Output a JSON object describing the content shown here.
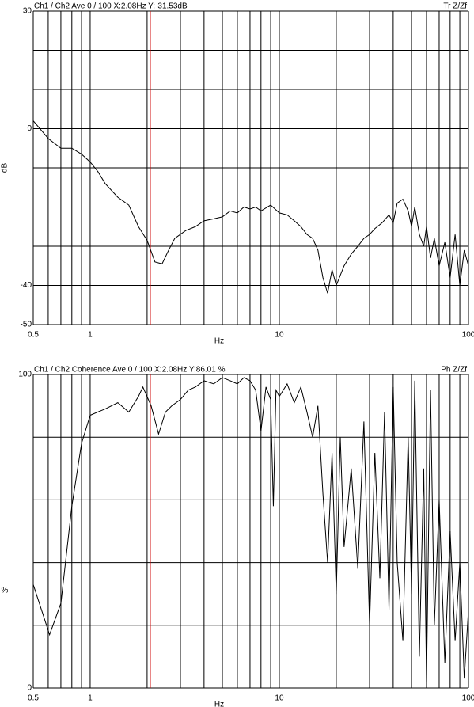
{
  "chart_data": [
    {
      "type": "line",
      "title": "Ch1 / Ch2  Ave 0 / 100  X:2.08Hz  Y:-31.53dB",
      "subtitle": "Tr Z/Zf",
      "xlabel": "Hz",
      "ylabel": "dB",
      "log_x": true,
      "cursor": 2.08,
      "cursor_color": "#d00000",
      "color": "#000000",
      "xlim": [
        0.5,
        100
      ],
      "ylim": [
        -50,
        30
      ],
      "xticks": [
        0.5,
        1,
        10,
        100
      ],
      "yticks": [
        30,
        0,
        -40,
        -50
      ],
      "xgrid": [
        0.5,
        0.6,
        0.7,
        0.8,
        0.9,
        1,
        2,
        3,
        4,
        5,
        6,
        7,
        8,
        9,
        10,
        20,
        30,
        40,
        50,
        60,
        70,
        80,
        90,
        100
      ],
      "ygrid": [
        30,
        20,
        10,
        0,
        -10,
        -20,
        -30,
        -40,
        -50
      ],
      "x": [
        0.5,
        0.6,
        0.7,
        0.8,
        0.9,
        1.0,
        1.1,
        1.2,
        1.4,
        1.6,
        1.8,
        2.0,
        2.2,
        2.4,
        2.6,
        2.8,
        3.2,
        3.6,
        4.0,
        4.5,
        5.0,
        5.5,
        6.0,
        6.5,
        7.0,
        7.5,
        8.0,
        9.0,
        10,
        11,
        12,
        13,
        14,
        15,
        16,
        17,
        18,
        19,
        20,
        22,
        24,
        26,
        28,
        30,
        32,
        35,
        38,
        40,
        42,
        45,
        48,
        50,
        52,
        55,
        58,
        60,
        63,
        66,
        70,
        75,
        80,
        85,
        90,
        95,
        100
      ],
      "values": [
        2,
        -2.5,
        -5,
        -5,
        -6.5,
        -8.5,
        -11,
        -14,
        -17.5,
        -19.5,
        -25,
        -28.5,
        -34,
        -34.5,
        -31,
        -28,
        -26,
        -25,
        -23.5,
        -23,
        -22.5,
        -21,
        -21.5,
        -20,
        -20.5,
        -20,
        -21,
        -19.5,
        -21.5,
        -22,
        -23.5,
        -25,
        -27,
        -28,
        -31,
        -38,
        -42,
        -36,
        -40,
        -35,
        -32,
        -30,
        -28,
        -27,
        -25.5,
        -24,
        -22,
        -24,
        -19,
        -18,
        -21,
        -25,
        -20,
        -27,
        -30,
        -25,
        -33,
        -28,
        -35,
        -29,
        -38,
        -27,
        -40,
        -31,
        -35
      ]
    },
    {
      "type": "line",
      "title": "Ch1 / Ch2  Coherence Ave 0 / 100  X:2.08Hz  Y:86.01 %",
      "subtitle": "Ph Z/Zf",
      "xlabel": "Hz",
      "ylabel": "%",
      "log_x": true,
      "cursor": 2.08,
      "cursor_color": "#d00000",
      "color": "#000000",
      "xlim": [
        0.5,
        100
      ],
      "ylim": [
        0,
        100
      ],
      "xticks": [
        0.5,
        1,
        10,
        100
      ],
      "yticks": [
        100,
        0
      ],
      "xgrid": [
        0.5,
        0.6,
        0.7,
        0.8,
        0.9,
        1,
        2,
        3,
        4,
        5,
        6,
        7,
        8,
        9,
        10,
        20,
        30,
        40,
        50,
        60,
        70,
        80,
        90,
        100
      ],
      "ygrid": [
        100,
        80,
        60,
        40,
        20,
        0
      ],
      "x": [
        0.5,
        0.61,
        0.7,
        0.8,
        0.9,
        1.0,
        1.2,
        1.4,
        1.6,
        1.8,
        1.9,
        2.1,
        2.3,
        2.5,
        2.7,
        3.0,
        3.3,
        3.6,
        4.0,
        4.5,
        5.0,
        5.5,
        6.0,
        6.5,
        7.0,
        7.5,
        8.0,
        8.5,
        9.0,
        9.3,
        9.6,
        10,
        11,
        12,
        13,
        14,
        15,
        16,
        17,
        18,
        19,
        20,
        21,
        22,
        24,
        26,
        28,
        30,
        32,
        34,
        36,
        38,
        40,
        42,
        45,
        48,
        50,
        52,
        55,
        58,
        60,
        63,
        66,
        70,
        75,
        80,
        85,
        90,
        95,
        100
      ],
      "values": [
        33,
        17,
        27,
        58,
        78,
        87,
        89,
        91,
        88,
        93,
        96,
        90,
        81,
        88,
        90,
        92,
        95,
        96,
        98,
        97,
        99,
        98,
        97,
        99,
        98,
        95,
        82,
        96,
        92,
        58,
        95,
        93,
        97,
        91,
        96,
        88,
        80,
        90,
        62,
        40,
        75,
        30,
        80,
        45,
        70,
        38,
        85,
        20,
        75,
        35,
        88,
        25,
        96,
        40,
        15,
        80,
        30,
        98,
        10,
        70,
        2,
        95,
        20,
        60,
        8,
        50,
        15,
        40,
        3,
        25
      ]
    }
  ]
}
